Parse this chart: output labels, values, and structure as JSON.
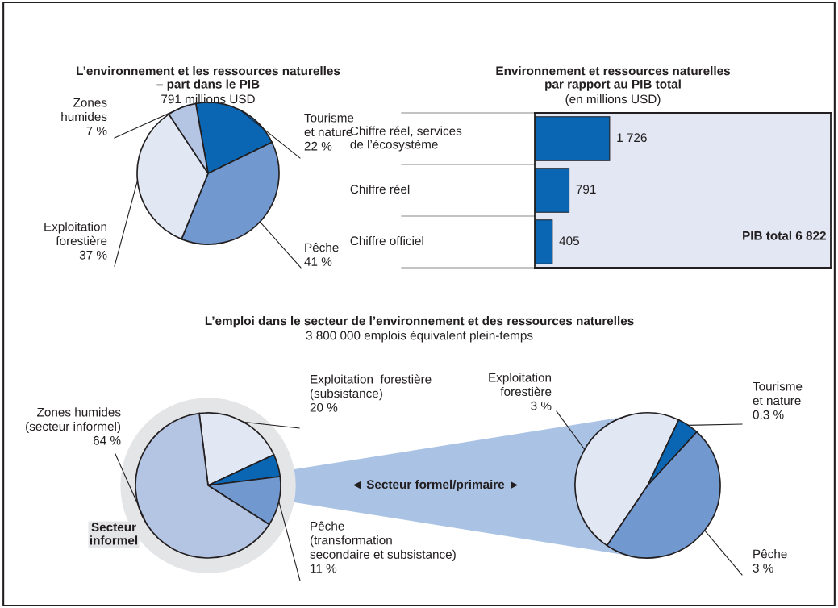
{
  "chart_data": [
    {
      "type": "pie",
      "title": "L’environnement et les ressources naturelles\n– part dans le PIB",
      "subtitle": "791 millions USD",
      "categories": [
        "Tourisme\net nature",
        "Pêche",
        "Exploitation\nforestière",
        "Zones\nhumides"
      ],
      "values": [
        22,
        41,
        37,
        7
      ],
      "value_labels": [
        "22 %",
        "41 %",
        "37 %",
        "7 %"
      ],
      "colors": [
        "#0a66b2",
        "#7199d0",
        "#e1e7f3",
        "#b4c5e4"
      ]
    },
    {
      "type": "bar",
      "orientation": "horizontal",
      "title": "Environnement et ressources naturelles\npar rapport au PIB total",
      "subtitle": "(en millions USD)",
      "categories": [
        "Chiffre réel, services\nde l’écosystème",
        "Chiffre réel",
        "Chiffre officiel"
      ],
      "values": [
        1726,
        791,
        405
      ],
      "value_labels": [
        "1 726",
        "791",
        "405"
      ],
      "color": "#0a66b2",
      "xlim": [
        0,
        6822
      ],
      "bands": [
        {
          "axis": "x",
          "from": 0,
          "to": 6822,
          "label": "PIB total 6 822",
          "color": "#e2e7f3"
        }
      ]
    },
    {
      "type": "pie",
      "title": "L’emploi dans le secteur de l’environnement et des ressources naturelles",
      "subtitle": "3 800 000 emplois équivalent plein-temps",
      "categories": [
        "Exploitation  forestière\n(subsistance)",
        null,
        "Pêche\n(transformation\nsecondaire et subsistance)",
        "Zones humides\n(secteur informel)"
      ],
      "values": [
        20,
        5,
        11,
        64
      ],
      "value_labels": [
        "20 %",
        null,
        "11 %",
        "64 %"
      ],
      "colors": [
        "#e1e7f3",
        "#0a66b2",
        "#7199d0",
        "#b4c5e4"
      ],
      "annotations": [
        "Secteur\ninformel",
        "◄ Secteur formel/primaire ►"
      ]
    },
    {
      "type": "pie",
      "categories": [
        "Exploitation\nforestière",
        "Tourisme\net nature",
        "Pêche"
      ],
      "values": [
        3,
        0.3,
        3
      ],
      "value_labels": [
        "3 %",
        "0.3 %",
        "3 %"
      ],
      "colors": [
        "#e1e7f3",
        "#0a66b2",
        "#7199d0"
      ]
    }
  ]
}
